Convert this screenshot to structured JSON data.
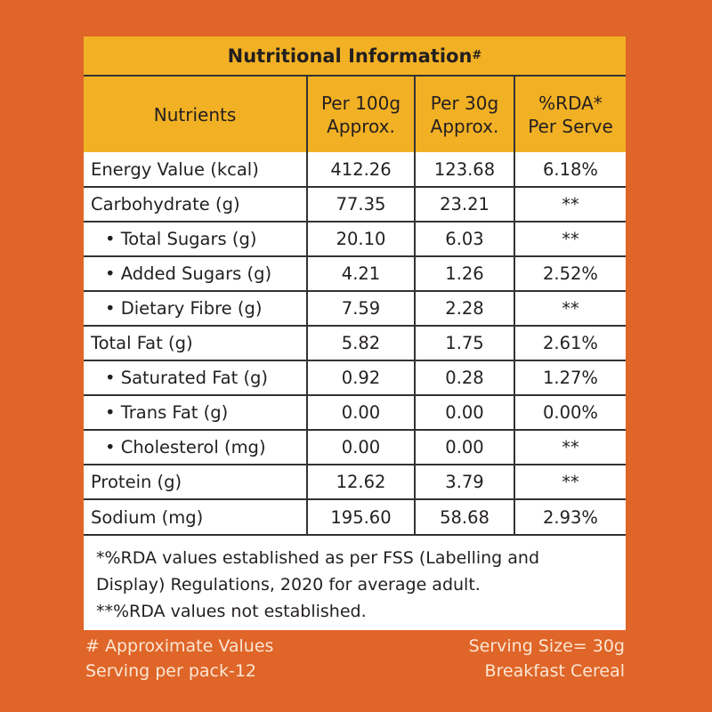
{
  "title": "Nutritional Information",
  "title_mark": "#",
  "headers": [
    "Nutrients",
    "Per 100g\nApprox.",
    "Per 30g\nApprox.",
    "%RDA*\nPer Serve"
  ],
  "rows": [
    {
      "name": "Energy Value (kcal)",
      "sub": false,
      "per100": "412.26",
      "per30": "123.68",
      "rda": "6.18%"
    },
    {
      "name": "Carbohydrate (g)",
      "sub": false,
      "per100": "77.35",
      "per30": "23.21",
      "rda": "**"
    },
    {
      "name": "• Total Sugars (g)",
      "sub": true,
      "per100": "20.10",
      "per30": "6.03",
      "rda": "**"
    },
    {
      "name": "• Added Sugars (g)",
      "sub": true,
      "per100": "4.21",
      "per30": "1.26",
      "rda": "2.52%"
    },
    {
      "name": "• Dietary Fibre (g)",
      "sub": true,
      "per100": "7.59",
      "per30": "2.28",
      "rda": "**"
    },
    {
      "name": "Total Fat (g)",
      "sub": false,
      "per100": "5.82",
      "per30": "1.75",
      "rda": "2.61%"
    },
    {
      "name": "• Saturated Fat (g)",
      "sub": true,
      "per100": "0.92",
      "per30": "0.28",
      "rda": "1.27%"
    },
    {
      "name": "• Trans Fat (g)",
      "sub": true,
      "per100": "0.00",
      "per30": "0.00",
      "rda": "0.00%"
    },
    {
      "name": "• Cholesterol (mg)",
      "sub": true,
      "per100": "0.00",
      "per30": "0.00",
      "rda": "**"
    },
    {
      "name": "Protein (g)",
      "sub": false,
      "per100": "12.62",
      "per30": "3.79",
      "rda": "**"
    },
    {
      "name": "Sodium (mg)",
      "sub": false,
      "per100": "195.60",
      "per30": "58.68",
      "rda": "2.93%"
    }
  ],
  "notes": [
    "*%RDA values established as per FSS (Labelling and Display) Regulations, 2020 for average adult.",
    "**%RDA values not established."
  ],
  "footer": {
    "left": [
      "# Approximate Values",
      "Serving per pack-12"
    ],
    "right": [
      "Serving Size= 30g",
      "Breakfast Cereal"
    ]
  },
  "colors": {
    "background": "#DF6528",
    "header": "#F2B124"
  }
}
